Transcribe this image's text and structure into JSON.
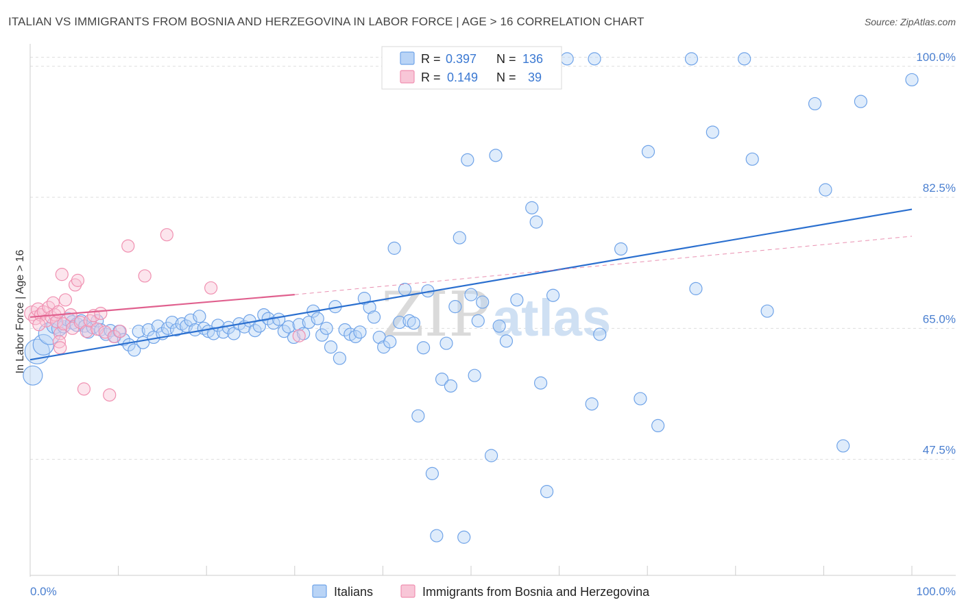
{
  "title": "ITALIAN VS IMMIGRANTS FROM BOSNIA AND HERZEGOVINA IN LABOR FORCE | AGE > 16 CORRELATION CHART",
  "source": "Source: ZipAtlas.com",
  "watermark": {
    "zip": "ZIP",
    "atlas": "atlas"
  },
  "colors": {
    "italians": "#6fa3e8",
    "italians_fill": "#b9d4f6",
    "italians_line": "#2a6fcf",
    "bosnia": "#f08fb0",
    "bosnia_fill": "#f8c6d7",
    "bosnia_line": "#e0608e",
    "grid": "#dddddd",
    "tick_text": "#4a7fd0"
  },
  "legend": {
    "rows": [
      {
        "r_label": "R =",
        "r_value": "0.397",
        "n_label": "N =",
        "n_value": "136"
      },
      {
        "r_label": "R =",
        "r_value": "0.149",
        "n_label": "N =",
        "n_value": "39"
      }
    ]
  },
  "chart_data": {
    "type": "scatter",
    "title": "ITALIAN VS IMMIGRANTS FROM BOSNIA AND HERZEGOVINA IN LABOR FORCE | AGE > 16 CORRELATION CHART",
    "xlabel": "",
    "ylabel": "In Labor Force | Age > 16",
    "xlim": [
      0,
      100
    ],
    "ylim": [
      32,
      103
    ],
    "x_tick_labels": [
      "0.0%",
      "100.0%"
    ],
    "y_ticks": [
      47.5,
      65.0,
      82.5,
      100.0
    ],
    "y_tick_labels": [
      "47.5%",
      "65.0%",
      "82.5%",
      "100.0%"
    ],
    "grid": true,
    "legend_position": "top-center",
    "series": [
      {
        "name": "Italians",
        "r": 0.397,
        "n": 136,
        "trend": {
          "x": [
            0,
            100
          ],
          "y": [
            60.8,
            80.9
          ]
        },
        "points": [
          [
            0.3,
            58.7,
            1.4
          ],
          [
            0.8,
            61.9,
            1.8
          ],
          [
            1.5,
            62.8,
            1.5
          ],
          [
            2.2,
            64.3,
            1.6
          ],
          [
            2.8,
            65.4,
            1.2
          ],
          [
            3.3,
            65.0,
            1.1
          ],
          [
            3.8,
            65.2,
            0.9
          ],
          [
            4.3,
            66.2,
            1.0
          ],
          [
            4.8,
            65.8,
            1.0
          ],
          [
            5.3,
            65.5,
            1.0
          ],
          [
            5.8,
            66.0,
            0.9
          ],
          [
            6.2,
            65.3,
            0.9
          ],
          [
            6.6,
            64.5,
            0.9
          ],
          [
            7.1,
            65.1,
            0.9
          ],
          [
            7.6,
            66.0,
            0.9
          ],
          [
            8.0,
            64.8,
            0.9
          ],
          [
            8.6,
            64.2,
            0.9
          ],
          [
            9.1,
            64.7,
            0.9
          ],
          [
            9.6,
            63.9,
            0.9
          ],
          [
            10.1,
            64.6,
            0.9
          ],
          [
            10.6,
            63.5,
            0.9
          ],
          [
            11.2,
            62.8,
            0.9
          ],
          [
            11.8,
            62.1,
            0.9
          ],
          [
            12.3,
            64.6,
            0.9
          ],
          [
            12.8,
            63.1,
            0.9
          ],
          [
            13.4,
            64.8,
            0.9
          ],
          [
            14.0,
            63.8,
            0.9
          ],
          [
            14.5,
            65.3,
            0.9
          ],
          [
            15.0,
            64.3,
            0.9
          ],
          [
            15.6,
            65.0,
            0.9
          ],
          [
            16.1,
            65.8,
            0.9
          ],
          [
            16.6,
            64.8,
            0.9
          ],
          [
            17.2,
            65.6,
            0.9
          ],
          [
            17.7,
            65.3,
            0.9
          ],
          [
            18.2,
            66.1,
            0.9
          ],
          [
            18.7,
            64.8,
            0.9
          ],
          [
            19.2,
            66.6,
            0.9
          ],
          [
            19.7,
            65.0,
            0.9
          ],
          [
            20.2,
            64.6,
            0.9
          ],
          [
            20.8,
            64.3,
            0.9
          ],
          [
            21.3,
            65.4,
            0.9
          ],
          [
            21.9,
            64.5,
            0.9
          ],
          [
            22.5,
            65.1,
            0.9
          ],
          [
            23.1,
            64.3,
            0.9
          ],
          [
            23.7,
            65.6,
            0.9
          ],
          [
            24.3,
            65.2,
            0.9
          ],
          [
            24.9,
            66.0,
            0.9
          ],
          [
            25.5,
            64.7,
            0.9
          ],
          [
            26.0,
            65.3,
            0.9
          ],
          [
            26.5,
            66.8,
            0.9
          ],
          [
            27.0,
            66.3,
            0.9
          ],
          [
            27.6,
            65.7,
            0.9
          ],
          [
            28.2,
            66.2,
            0.9
          ],
          [
            28.8,
            64.6,
            0.9
          ],
          [
            29.3,
            65.2,
            0.9
          ],
          [
            29.9,
            63.8,
            0.9
          ],
          [
            30.5,
            65.5,
            0.9
          ],
          [
            31.0,
            64.3,
            0.9
          ],
          [
            31.6,
            65.8,
            0.9
          ],
          [
            32.1,
            67.3,
            0.9
          ],
          [
            32.6,
            66.3,
            0.9
          ],
          [
            33.1,
            64.1,
            0.9
          ],
          [
            33.6,
            65.0,
            0.9
          ],
          [
            34.1,
            62.5,
            0.9
          ],
          [
            34.6,
            67.9,
            0.9
          ],
          [
            35.1,
            61.0,
            0.9
          ],
          [
            35.7,
            64.8,
            0.9
          ],
          [
            36.3,
            64.2,
            0.9
          ],
          [
            36.9,
            63.9,
            0.9
          ],
          [
            37.4,
            64.5,
            0.9
          ],
          [
            37.9,
            69.0,
            0.9
          ],
          [
            38.5,
            67.8,
            0.9
          ],
          [
            39.0,
            66.5,
            0.9
          ],
          [
            39.6,
            63.8,
            0.9
          ],
          [
            40.1,
            62.5,
            0.9
          ],
          [
            40.8,
            63.2,
            0.9
          ],
          [
            41.3,
            75.7,
            0.9
          ],
          [
            41.9,
            65.8,
            0.9
          ],
          [
            42.5,
            70.2,
            0.9
          ],
          [
            43.0,
            66.0,
            0.9
          ],
          [
            43.5,
            65.7,
            0.9
          ],
          [
            44.0,
            53.3,
            0.9
          ],
          [
            44.6,
            62.4,
            0.9
          ],
          [
            45.1,
            70.0,
            0.9
          ],
          [
            45.6,
            45.6,
            0.9
          ],
          [
            46.1,
            37.3,
            0.9
          ],
          [
            46.7,
            58.2,
            0.9
          ],
          [
            47.2,
            63.0,
            0.9
          ],
          [
            47.7,
            57.3,
            0.9
          ],
          [
            48.2,
            67.9,
            0.9
          ],
          [
            48.7,
            77.1,
            0.9
          ],
          [
            49.2,
            37.1,
            0.9
          ],
          [
            49.6,
            87.5,
            0.9
          ],
          [
            50.0,
            69.5,
            0.9
          ],
          [
            50.4,
            58.7,
            0.9
          ],
          [
            50.8,
            66.0,
            0.9
          ],
          [
            51.3,
            68.5,
            0.9
          ],
          [
            51.8,
            99.6,
            0.9
          ],
          [
            52.3,
            48.0,
            0.9
          ],
          [
            52.8,
            88.1,
            0.9
          ],
          [
            53.2,
            65.3,
            0.9
          ],
          [
            54.0,
            63.3,
            0.9
          ],
          [
            55.2,
            68.8,
            0.9
          ],
          [
            56.1,
            100.4,
            0.9
          ],
          [
            56.9,
            81.1,
            0.9
          ],
          [
            57.4,
            79.2,
            0.9
          ],
          [
            57.9,
            57.7,
            0.9
          ],
          [
            58.6,
            43.2,
            0.9
          ],
          [
            59.3,
            69.4,
            0.9
          ],
          [
            60.9,
            101.0,
            0.9
          ],
          [
            63.7,
            54.9,
            0.9
          ],
          [
            64.0,
            101.0,
            0.9
          ],
          [
            64.6,
            64.2,
            0.9
          ],
          [
            67.0,
            75.6,
            0.9
          ],
          [
            69.2,
            55.6,
            0.9
          ],
          [
            70.1,
            88.6,
            0.9
          ],
          [
            71.2,
            52.0,
            0.9
          ],
          [
            75.0,
            101.0,
            0.9
          ],
          [
            75.5,
            70.3,
            0.9
          ],
          [
            77.4,
            91.2,
            0.9
          ],
          [
            81.0,
            101.0,
            0.9
          ],
          [
            81.9,
            87.6,
            0.9
          ],
          [
            83.6,
            67.3,
            0.9
          ],
          [
            89.0,
            95.0,
            0.9
          ],
          [
            90.2,
            83.5,
            0.9
          ],
          [
            92.2,
            49.3,
            0.9
          ],
          [
            94.2,
            95.3,
            0.9
          ],
          [
            100.0,
            98.2,
            0.9
          ]
        ]
      },
      {
        "name": "Immigrants from Bosnia and Herzegovina",
        "r": 0.149,
        "n": 39,
        "trend": {
          "x": [
            0,
            30
          ],
          "y": [
            66.5,
            69.5
          ],
          "dashed_to": [
            100,
            77.3
          ]
        },
        "points": [
          [
            0.2,
            67.0,
            1.2
          ],
          [
            0.6,
            66.4,
            1.1
          ],
          [
            0.9,
            67.5,
            1.1
          ],
          [
            1.2,
            66.8,
            1.0
          ],
          [
            1.5,
            67.2,
            1.0
          ],
          [
            1.8,
            66.0,
            1.0
          ],
          [
            2.1,
            67.8,
            1.0
          ],
          [
            2.4,
            66.5,
            1.0
          ],
          [
            2.6,
            68.4,
            1.0
          ],
          [
            2.8,
            66.8,
            1.0
          ],
          [
            3.0,
            65.9,
            1.0
          ],
          [
            3.2,
            67.2,
            1.0
          ],
          [
            3.4,
            64.3,
            1.0
          ],
          [
            3.6,
            72.2,
            1.0
          ],
          [
            3.8,
            65.6,
            1.0
          ],
          [
            4.0,
            68.8,
            1.0
          ],
          [
            3.3,
            63.2,
            1.0
          ],
          [
            3.4,
            62.4,
            1.0
          ],
          [
            4.6,
            66.8,
            1.0
          ],
          [
            4.8,
            65.0,
            1.0
          ],
          [
            5.1,
            70.8,
            1.0
          ],
          [
            5.4,
            71.4,
            1.0
          ],
          [
            5.7,
            65.8,
            1.0
          ],
          [
            6.1,
            56.9,
            1.0
          ],
          [
            6.4,
            64.6,
            1.0
          ],
          [
            6.8,
            66.0,
            1.0
          ],
          [
            7.2,
            66.7,
            1.0
          ],
          [
            7.6,
            64.9,
            1.0
          ],
          [
            8.0,
            67.0,
            1.0
          ],
          [
            8.5,
            64.5,
            1.0
          ],
          [
            9.0,
            56.1,
            1.0
          ],
          [
            9.5,
            63.9,
            1.0
          ],
          [
            10.2,
            64.6,
            1.0
          ],
          [
            11.1,
            76.0,
            1.0
          ],
          [
            13.0,
            72.0,
            1.0
          ],
          [
            15.5,
            77.5,
            1.0
          ],
          [
            20.5,
            70.4,
            1.0
          ],
          [
            30.5,
            64.0,
            1.0
          ],
          [
            1.0,
            65.5,
            1.0
          ]
        ]
      }
    ]
  },
  "bottom_legend": [
    {
      "label": "Italians"
    },
    {
      "label": "Immigrants from Bosnia and Herzegovina"
    }
  ]
}
